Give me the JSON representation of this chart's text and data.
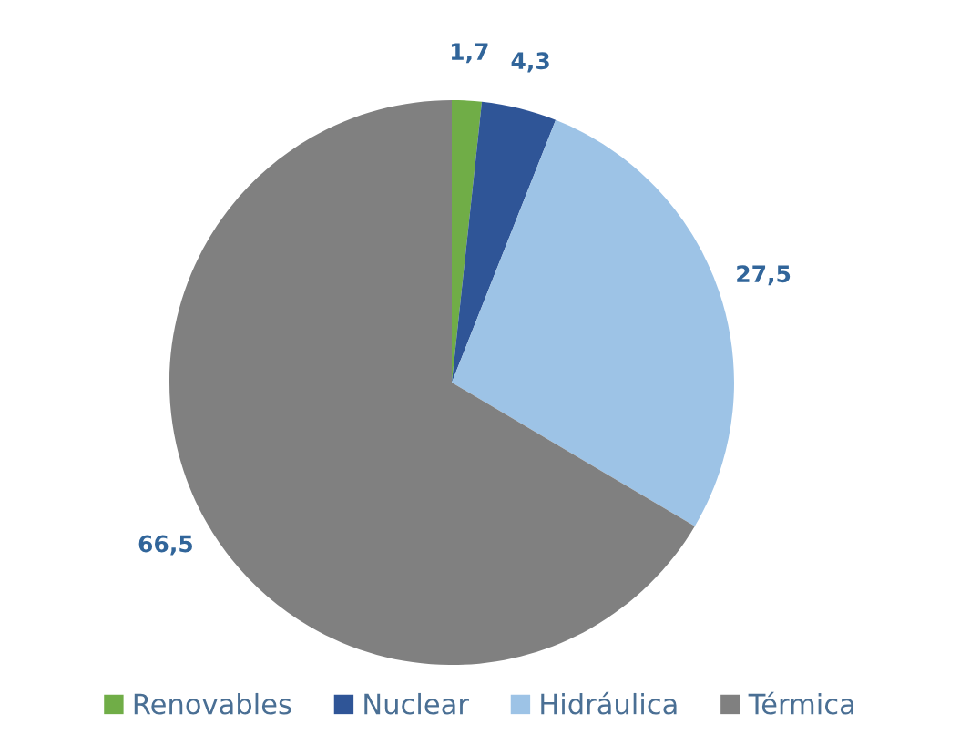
{
  "chart_data": {
    "type": "pie",
    "categories": [
      "Renovables",
      "Nuclear",
      "Hidráulica",
      "Térmica"
    ],
    "values": [
      1.7,
      4.3,
      27.5,
      66.5
    ],
    "value_labels": [
      "1,7",
      "4,3",
      "27,5",
      "66,5"
    ],
    "colors": [
      "#70ad47",
      "#2f5597",
      "#9dc3e6",
      "#808080"
    ],
    "legend": "bottom"
  }
}
